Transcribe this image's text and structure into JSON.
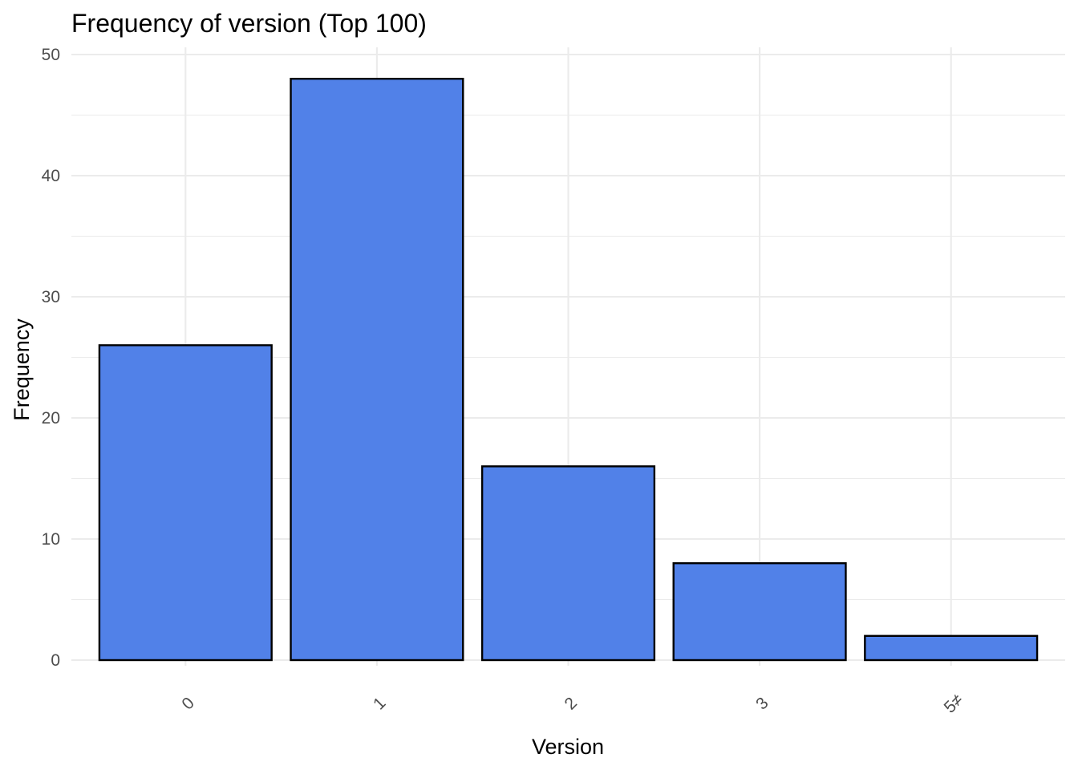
{
  "chart_data": {
    "type": "bar",
    "title": "Frequency of version (Top 100)",
    "xlabel": "Version",
    "ylabel": "Frequency",
    "categories": [
      "0",
      "1",
      "2",
      "3",
      "5"
    ],
    "category_tick_labels": [
      "0",
      "1",
      "2",
      "3",
      "5≠"
    ],
    "values": [
      26,
      48,
      16,
      8,
      2
    ],
    "ylim": [
      0,
      50
    ],
    "y_ticks": [
      0,
      10,
      20,
      30,
      40,
      50
    ],
    "grid": true,
    "legend": "none",
    "bar_fill": "#5181e8",
    "bar_outline": "#000000"
  }
}
